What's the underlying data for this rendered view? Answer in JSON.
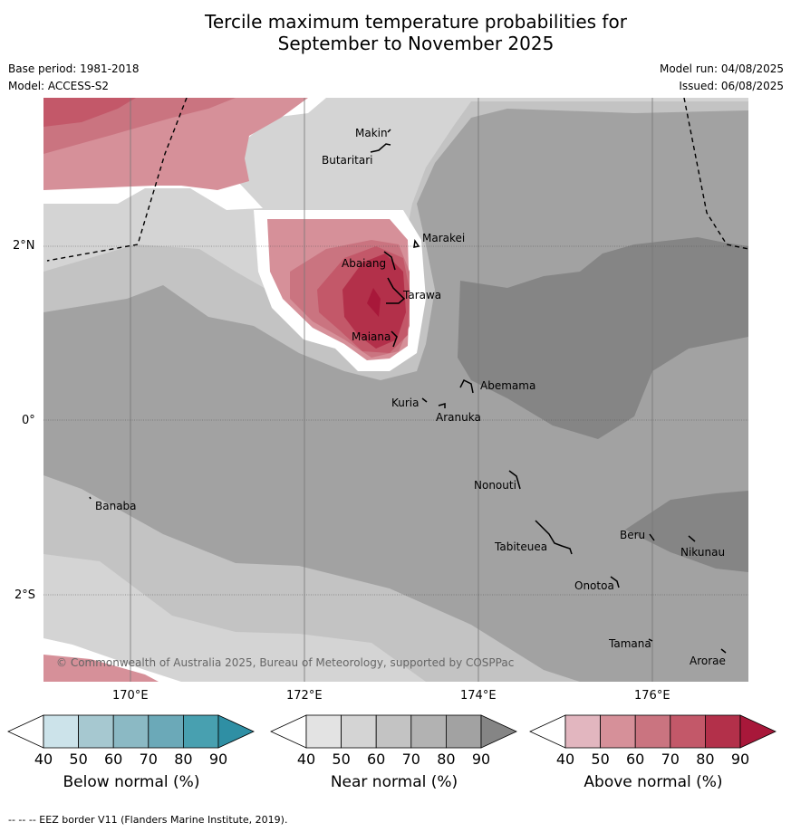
{
  "title": [
    "Tercile maximum temperature probabilities for",
    "September to November 2025"
  ],
  "meta_left": [
    "Base period: 1981-2018",
    "Model: ACCESS-S2"
  ],
  "meta_right": [
    "Model run: 04/08/2025",
    "Issued: 06/08/2025"
  ],
  "lat_labels": [
    "2°N",
    "0°",
    "2°S"
  ],
  "lon_labels": [
    "170°E",
    "172°E",
    "174°E",
    "176°E"
  ],
  "places": [
    {
      "name": "Makin"
    },
    {
      "name": "Butaritari"
    },
    {
      "name": "Marakei"
    },
    {
      "name": "Abaiang"
    },
    {
      "name": "Tarawa"
    },
    {
      "name": "Maiana"
    },
    {
      "name": "Abemama"
    },
    {
      "name": "Kuria"
    },
    {
      "name": "Aranuka"
    },
    {
      "name": "Nonouti"
    },
    {
      "name": "Banaba"
    },
    {
      "name": "Beru"
    },
    {
      "name": "Tabiteuea"
    },
    {
      "name": "Nikunau"
    },
    {
      "name": "Onotoa"
    },
    {
      "name": "Tamana"
    },
    {
      "name": "Arorae"
    }
  ],
  "copyright": "© Commonwealth of Australia 2025, Bureau of Meteorology, supported by COSPPac",
  "colorbars": [
    {
      "title": "Below normal (%)",
      "ticks": [
        "40",
        "50",
        "60",
        "70",
        "80",
        "90"
      ],
      "colors": [
        "#ffffff",
        "#cce3ea",
        "#a6c8d0",
        "#8bb9c4",
        "#6ba9b8",
        "#48a0b0",
        "#2f8fa4"
      ]
    },
    {
      "title": "Near normal (%)",
      "ticks": [
        "40",
        "50",
        "60",
        "70",
        "80",
        "90"
      ],
      "colors": [
        "#ffffff",
        "#e3e3e3",
        "#d4d4d4",
        "#c3c3c3",
        "#b2b2b2",
        "#a2a2a2",
        "#858585"
      ]
    },
    {
      "title": "Above normal (%)",
      "ticks": [
        "40",
        "50",
        "60",
        "70",
        "80",
        "90"
      ],
      "colors": [
        "#ffffff",
        "#e2b6bf",
        "#d69099",
        "#ca7480",
        "#c35869",
        "#b3304a",
        "#a8183a"
      ]
    }
  ],
  "footnote": "-- -- -- EEZ border V11 (Flanders Marine Institute, 2019)."
}
